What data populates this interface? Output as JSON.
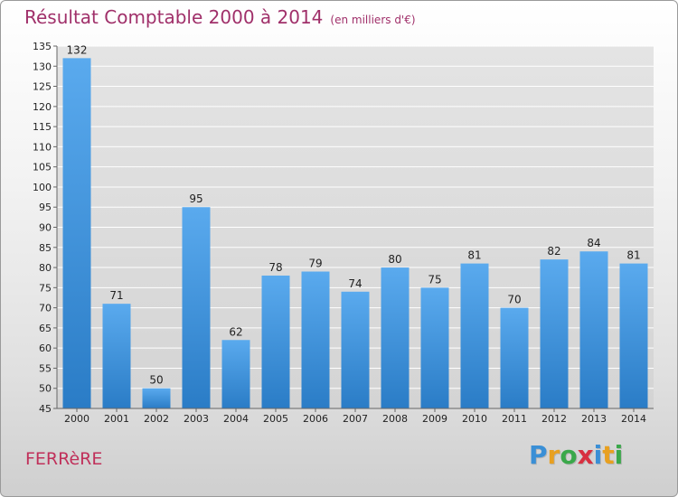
{
  "header": {
    "title": "Résultat Comptable 2000 à 2014",
    "subtitle": "(en milliers d'€)"
  },
  "footer": {
    "commune": "FERRèRE",
    "logo_letters": [
      "P",
      "r",
      "o",
      "x",
      "i",
      "t",
      "i"
    ],
    "logo_colors": [
      "#3a8fd6",
      "#e8a020",
      "#3aa84a",
      "#d83040",
      "#3a8fd6",
      "#e8a020",
      "#3aa84a"
    ]
  },
  "chart_data": {
    "type": "bar",
    "title": "Résultat Comptable 2000 à 2014",
    "subtitle": "(en milliers d'€)",
    "categories": [
      "2000",
      "2001",
      "2002",
      "2003",
      "2004",
      "2005",
      "2006",
      "2007",
      "2008",
      "2009",
      "2010",
      "2011",
      "2012",
      "2013",
      "2014"
    ],
    "values": [
      132,
      71,
      50,
      95,
      62,
      78,
      79,
      74,
      80,
      75,
      81,
      70,
      82,
      84,
      81
    ],
    "ylim": [
      45,
      135
    ],
    "yticks": [
      45,
      50,
      55,
      60,
      65,
      70,
      75,
      80,
      85,
      90,
      95,
      100,
      105,
      110,
      115,
      120,
      125,
      130,
      135
    ],
    "grid": true,
    "legend": "none",
    "bar_color": "#3d8fd8",
    "grid_color": "#ffffff"
  }
}
